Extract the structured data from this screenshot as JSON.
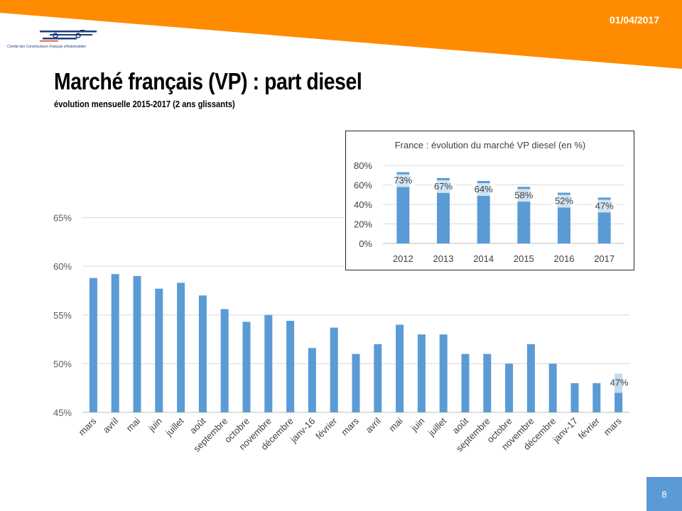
{
  "slide": {
    "date": "01/04/2017",
    "title": "Marché français (VP) : part diesel",
    "subtitle": "évolution mensuelle 2015-2017 (2 ans glissants)",
    "logo_caption": "Comité des Constructeurs Français d'Automobiles",
    "page_number": "8",
    "accent_color": "#ff8c00",
    "bar_color": "#5b9bd5"
  },
  "chart_data": [
    {
      "type": "bar",
      "title": "",
      "xlabel": "",
      "ylabel": "",
      "categories": [
        "mars",
        "avril",
        "mai",
        "juin",
        "juillet",
        "août",
        "septembre",
        "octobre",
        "novembre",
        "décembre",
        "janv-16",
        "février",
        "mars",
        "avril",
        "mai",
        "juin",
        "juillet",
        "août",
        "septembre",
        "octobre",
        "novembre",
        "décembre",
        "janv-17",
        "février",
        "mars"
      ],
      "values": [
        58.8,
        59.2,
        59.0,
        57.7,
        58.3,
        57.0,
        55.6,
        54.3,
        55.0,
        54.4,
        51.6,
        53.7,
        51.0,
        52.0,
        54.0,
        53.0,
        53.0,
        51.0,
        51.0,
        50.0,
        52.0,
        50.0,
        48.0,
        48.0,
        47.0
      ],
      "highlight_index": 24,
      "highlight_label": "47%",
      "yticks": [
        "45%",
        "50%",
        "55%",
        "60%",
        "65%"
      ],
      "ylim": [
        45,
        66.5
      ],
      "grid": true
    },
    {
      "type": "bar",
      "title": "France : évolution du marché VP diesel (en %)",
      "xlabel": "",
      "ylabel": "",
      "categories": [
        "2012",
        "2013",
        "2014",
        "2015",
        "2016",
        "2017"
      ],
      "values": [
        73,
        67,
        64,
        58,
        52,
        47
      ],
      "data_labels": [
        "73%",
        "67%",
        "64%",
        "58%",
        "52%",
        "47%"
      ],
      "yticks": [
        "0%",
        "20%",
        "40%",
        "60%",
        "80%"
      ],
      "ylim": [
        0,
        80
      ],
      "grid": true
    }
  ]
}
